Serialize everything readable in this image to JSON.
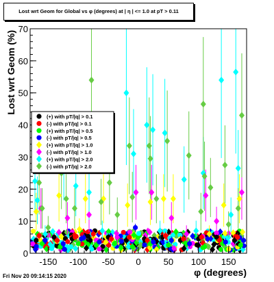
{
  "title": "Lost wrt Geom for Global vs φ (degrees) at | η | <= 1.0 at pT > 0.11",
  "footer_timestamp": "Fri Nov 20 09:14:15 2020",
  "chart_data": {
    "type": "scatter",
    "xlabel": "φ (degrees)",
    "ylabel": "Lost wrt Geom (%)",
    "xlim": [
      -180,
      180
    ],
    "ylim": [
      0,
      70
    ],
    "xticks": [
      -150,
      -100,
      -50,
      0,
      50,
      100,
      150
    ],
    "yticks": [
      0,
      10,
      20,
      30,
      40,
      50,
      60,
      70
    ],
    "grid": false,
    "legend_position": "middle-left",
    "series": [
      {
        "name": "(+) with pT/|q| > 0.1",
        "color": "#000000",
        "marker": "circle",
        "points": [
          [
            -170,
            4
          ],
          [
            -140,
            5
          ],
          [
            -110,
            4.5
          ],
          [
            -80,
            4
          ],
          [
            -50,
            5
          ],
          [
            -20,
            4
          ],
          [
            10,
            4.5
          ],
          [
            40,
            5
          ],
          [
            70,
            4
          ],
          [
            100,
            4.5
          ],
          [
            130,
            5
          ],
          [
            160,
            4
          ]
        ]
      },
      {
        "name": "(-) with pT/|q| > 0.1",
        "color": "#ff0000",
        "marker": "circle",
        "points": [
          [
            -165,
            5.5
          ],
          [
            -135,
            4
          ],
          [
            -105,
            5
          ],
          [
            -75,
            6
          ],
          [
            -45,
            4.5
          ],
          [
            -15,
            5
          ],
          [
            15,
            4
          ],
          [
            45,
            5.5
          ],
          [
            75,
            4.5
          ],
          [
            105,
            5
          ],
          [
            135,
            4
          ],
          [
            165,
            5
          ]
        ]
      },
      {
        "name": "(+) with pT/|q| > 0.5",
        "color": "#00ff00",
        "marker": "circle",
        "points": [
          [
            -160,
            3
          ],
          [
            -130,
            2
          ],
          [
            -100,
            3
          ],
          [
            -70,
            2.5
          ],
          [
            -40,
            3
          ],
          [
            -10,
            2
          ],
          [
            20,
            3
          ],
          [
            50,
            2.5
          ],
          [
            80,
            3
          ],
          [
            110,
            2
          ],
          [
            140,
            3
          ],
          [
            170,
            2.5
          ]
        ]
      },
      {
        "name": "(-) with pT/|q| > 0.5",
        "color": "#0000ff",
        "marker": "circle",
        "points": [
          [
            -155,
            4
          ],
          [
            -125,
            3
          ],
          [
            -95,
            4.5
          ],
          [
            -65,
            3.5
          ],
          [
            -35,
            5
          ],
          [
            -5,
            8
          ],
          [
            25,
            3.5
          ],
          [
            55,
            4
          ],
          [
            85,
            3
          ],
          [
            115,
            4.5
          ],
          [
            145,
            3.5
          ],
          [
            175,
            4
          ]
        ]
      },
      {
        "name": "(+) with pT/|q| > 1.0",
        "color": "#ffff00",
        "marker": "diamond",
        "points": [
          [
            -170,
            13
          ],
          [
            -132,
            18
          ],
          [
            -98,
            7.5
          ],
          [
            -88,
            17
          ],
          [
            -58,
            17
          ],
          [
            -18,
            15
          ],
          [
            20,
            16
          ],
          [
            42,
            17
          ],
          [
            58,
            17
          ],
          [
            118,
            6
          ],
          [
            142,
            15
          ],
          [
            168,
            17
          ]
        ]
      },
      {
        "name": "(-) with pT/|q| > 1.0",
        "color": "#ff00ff",
        "marker": "diamond",
        "points": [
          [
            -162,
            14
          ],
          [
            -118,
            11
          ],
          [
            -82,
            12
          ],
          [
            -35,
            5
          ],
          [
            -4,
            19
          ],
          [
            22,
            19
          ],
          [
            55,
            11
          ],
          [
            80,
            6
          ],
          [
            112,
            18
          ],
          [
            130,
            10
          ],
          [
            172,
            19
          ]
        ]
      },
      {
        "name": "(+) with pT/|q| > 2.0",
        "color": "#00ffff",
        "marker": "diamond",
        "points": [
          [
            -172,
            22.5
          ],
          [
            -168,
            16.5
          ],
          [
            -155,
            6
          ],
          [
            -124,
            30
          ],
          [
            -104,
            21
          ],
          [
            -82,
            19
          ],
          [
            -60,
            7
          ],
          [
            -20,
            50
          ],
          [
            -8,
            31
          ],
          [
            14,
            40
          ],
          [
            24,
            38.5
          ],
          [
            36,
            7
          ],
          [
            44,
            37.5
          ],
          [
            76,
            23
          ],
          [
            96,
            7
          ],
          [
            108,
            25
          ],
          [
            138,
            54
          ],
          [
            154,
            12
          ],
          [
            162,
            56.5
          ],
          [
            166,
            26.5
          ]
        ]
      },
      {
        "name": "(-) with pT/|q| > 2.0",
        "color": "#66cc44",
        "marker": "diamond",
        "points": [
          [
            -165,
            22
          ],
          [
            -160,
            14
          ],
          [
            -150,
            8
          ],
          [
            -128,
            25
          ],
          [
            -120,
            17
          ],
          [
            -106,
            14
          ],
          [
            -78,
            54
          ],
          [
            -62,
            16
          ],
          [
            -48,
            22
          ],
          [
            -35,
            12
          ],
          [
            -15,
            33.5
          ],
          [
            -10,
            17.5
          ],
          [
            18,
            33.5
          ],
          [
            20,
            29.5
          ],
          [
            30,
            17
          ],
          [
            48,
            35
          ],
          [
            84,
            30.5
          ],
          [
            104,
            13
          ],
          [
            108,
            46.5
          ],
          [
            110,
            24
          ],
          [
            120,
            20.5
          ],
          [
            144,
            27.5
          ],
          [
            150,
            9
          ],
          [
            166,
            14
          ],
          [
            172,
            43
          ]
        ]
      }
    ]
  }
}
